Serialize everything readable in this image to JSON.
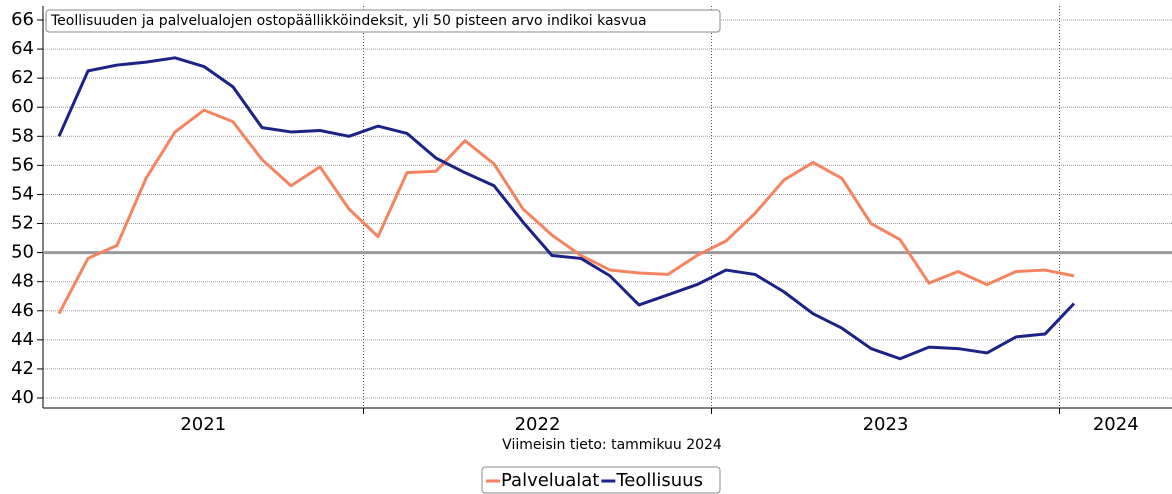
{
  "chart_data": {
    "type": "line",
    "title": "Teollisuuden ja palvelualojen ostopäällikköindeksit, yli 50 pisteen arvo indikoi kasvua",
    "subtitle": "Viimeisin tieto: tammikuu 2024",
    "categories": [
      "2021",
      null,
      null,
      null,
      null,
      null,
      null,
      null,
      null,
      null,
      null,
      "2022",
      null,
      null,
      null,
      null,
      null,
      null,
      null,
      null,
      null,
      null,
      null,
      "2023",
      null,
      null,
      null,
      null,
      null,
      null,
      null,
      null,
      null,
      null,
      null,
      "2024"
    ],
    "series": [
      {
        "name": "Palvelualat",
        "color": "#f4845f",
        "values": [
          45.8,
          49.6,
          50.5,
          55.1,
          58.3,
          59.8,
          59.0,
          56.4,
          54.6,
          55.9,
          53.0,
          51.1,
          55.5,
          55.6,
          57.7,
          56.1,
          53.0,
          51.2,
          49.8,
          48.8,
          48.6,
          48.5,
          49.8,
          50.8,
          52.7,
          55.0,
          56.2,
          55.1,
          52.0,
          50.9,
          47.9,
          48.7,
          47.8,
          48.7,
          48.8,
          48.4
        ]
      },
      {
        "name": "Teollisuus",
        "color": "#1c2286",
        "values": [
          58.0,
          62.5,
          62.9,
          63.1,
          63.4,
          62.8,
          61.4,
          58.6,
          58.3,
          58.4,
          58.0,
          58.7,
          58.2,
          56.5,
          55.5,
          54.6,
          52.1,
          49.8,
          49.6,
          48.4,
          46.4,
          47.1,
          47.8,
          48.8,
          48.5,
          47.3,
          45.8,
          44.8,
          43.4,
          42.7,
          43.5,
          43.4,
          43.1,
          44.2,
          44.4,
          46.5
        ]
      }
    ],
    "ylim": [
      39,
      67
    ],
    "yticks": [
      40,
      42,
      44,
      46,
      48,
      50,
      52,
      54,
      56,
      58,
      60,
      62,
      64,
      66
    ],
    "reference_line": 50,
    "grid": true,
    "legend": "bottom"
  }
}
